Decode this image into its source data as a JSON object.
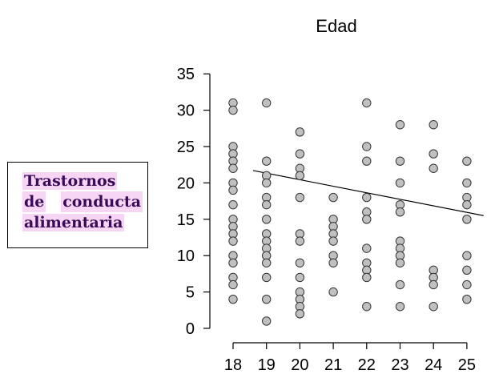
{
  "variable_box": {
    "line1": "Trastornos",
    "line2_a": "de",
    "line2_b": "conducta",
    "line3": "alimentaria"
  },
  "chart_data": {
    "type": "scatter",
    "title": "Edad",
    "xlabel": "",
    "ylabel": "",
    "x_ticks": [
      18,
      19,
      20,
      21,
      22,
      23,
      24,
      25
    ],
    "y_ticks": [
      0,
      5,
      10,
      15,
      20,
      25,
      30,
      35
    ],
    "ylim": [
      0,
      35
    ],
    "grid": false,
    "point_color": "#c0c0c0",
    "trend_line": {
      "x": [
        18.6,
        25.5
      ],
      "y": [
        21.7,
        15.5
      ]
    },
    "points": [
      {
        "x": 18,
        "y": 31
      },
      {
        "x": 18,
        "y": 30
      },
      {
        "x": 18,
        "y": 25
      },
      {
        "x": 18,
        "y": 24
      },
      {
        "x": 18,
        "y": 23
      },
      {
        "x": 18,
        "y": 22
      },
      {
        "x": 18,
        "y": 20
      },
      {
        "x": 18,
        "y": 19
      },
      {
        "x": 18,
        "y": 17
      },
      {
        "x": 18,
        "y": 15
      },
      {
        "x": 18,
        "y": 14
      },
      {
        "x": 18,
        "y": 13
      },
      {
        "x": 18,
        "y": 12
      },
      {
        "x": 18,
        "y": 10
      },
      {
        "x": 18,
        "y": 9
      },
      {
        "x": 18,
        "y": 7
      },
      {
        "x": 18,
        "y": 6
      },
      {
        "x": 18,
        "y": 4
      },
      {
        "x": 19,
        "y": 31
      },
      {
        "x": 19,
        "y": 23
      },
      {
        "x": 19,
        "y": 21
      },
      {
        "x": 19,
        "y": 20
      },
      {
        "x": 19,
        "y": 18
      },
      {
        "x": 19,
        "y": 17
      },
      {
        "x": 19,
        "y": 15
      },
      {
        "x": 19,
        "y": 13
      },
      {
        "x": 19,
        "y": 12
      },
      {
        "x": 19,
        "y": 11
      },
      {
        "x": 19,
        "y": 10
      },
      {
        "x": 19,
        "y": 9
      },
      {
        "x": 19,
        "y": 7
      },
      {
        "x": 19,
        "y": 4
      },
      {
        "x": 19,
        "y": 1
      },
      {
        "x": 20,
        "y": 27
      },
      {
        "x": 20,
        "y": 24
      },
      {
        "x": 20,
        "y": 22
      },
      {
        "x": 20,
        "y": 21
      },
      {
        "x": 20,
        "y": 18
      },
      {
        "x": 20,
        "y": 13
      },
      {
        "x": 20,
        "y": 12
      },
      {
        "x": 20,
        "y": 9
      },
      {
        "x": 20,
        "y": 7
      },
      {
        "x": 20,
        "y": 5
      },
      {
        "x": 20,
        "y": 4
      },
      {
        "x": 20,
        "y": 3
      },
      {
        "x": 20,
        "y": 2
      },
      {
        "x": 21,
        "y": 18
      },
      {
        "x": 21,
        "y": 15
      },
      {
        "x": 21,
        "y": 14
      },
      {
        "x": 21,
        "y": 13
      },
      {
        "x": 21,
        "y": 12
      },
      {
        "x": 21,
        "y": 10
      },
      {
        "x": 21,
        "y": 9
      },
      {
        "x": 21,
        "y": 5
      },
      {
        "x": 22,
        "y": 31
      },
      {
        "x": 22,
        "y": 25
      },
      {
        "x": 22,
        "y": 23
      },
      {
        "x": 22,
        "y": 18
      },
      {
        "x": 22,
        "y": 16
      },
      {
        "x": 22,
        "y": 15
      },
      {
        "x": 22,
        "y": 11
      },
      {
        "x": 22,
        "y": 9
      },
      {
        "x": 22,
        "y": 8
      },
      {
        "x": 22,
        "y": 7
      },
      {
        "x": 22,
        "y": 3
      },
      {
        "x": 23,
        "y": 28
      },
      {
        "x": 23,
        "y": 23
      },
      {
        "x": 23,
        "y": 20
      },
      {
        "x": 23,
        "y": 17
      },
      {
        "x": 23,
        "y": 16
      },
      {
        "x": 23,
        "y": 12
      },
      {
        "x": 23,
        "y": 11
      },
      {
        "x": 23,
        "y": 10
      },
      {
        "x": 23,
        "y": 9
      },
      {
        "x": 23,
        "y": 6
      },
      {
        "x": 23,
        "y": 3
      },
      {
        "x": 24,
        "y": 28
      },
      {
        "x": 24,
        "y": 24
      },
      {
        "x": 24,
        "y": 22
      },
      {
        "x": 24,
        "y": 8
      },
      {
        "x": 24,
        "y": 7
      },
      {
        "x": 24,
        "y": 6
      },
      {
        "x": 24,
        "y": 3
      },
      {
        "x": 25,
        "y": 23
      },
      {
        "x": 25,
        "y": 20
      },
      {
        "x": 25,
        "y": 18
      },
      {
        "x": 25,
        "y": 17
      },
      {
        "x": 25,
        "y": 15
      },
      {
        "x": 25,
        "y": 10
      },
      {
        "x": 25,
        "y": 8
      },
      {
        "x": 25,
        "y": 6
      },
      {
        "x": 25,
        "y": 4
      }
    ]
  }
}
